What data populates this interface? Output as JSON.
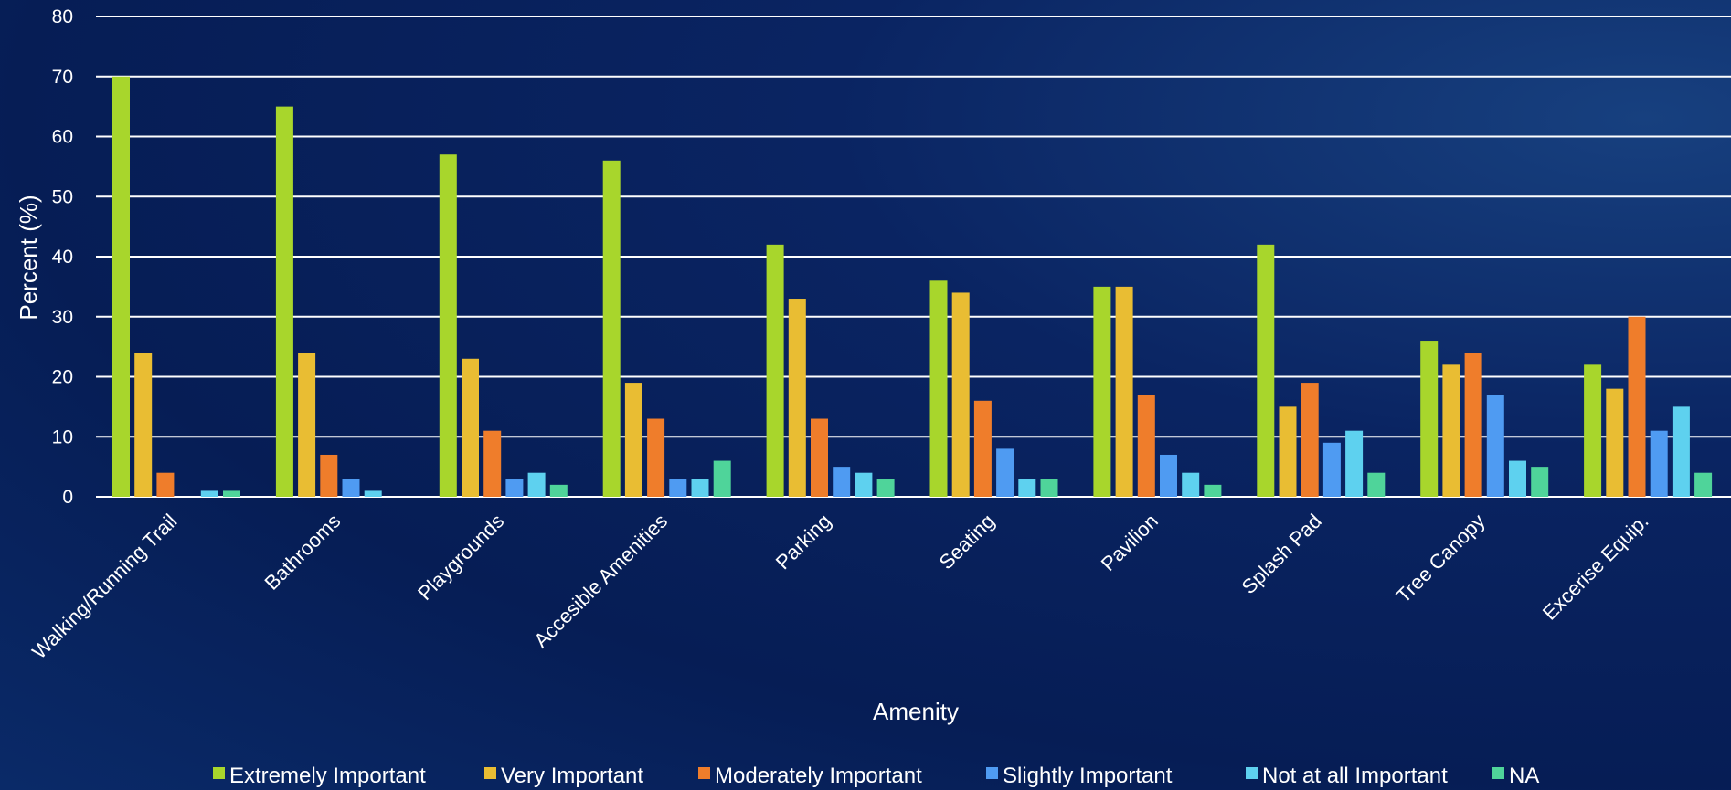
{
  "chart_data": {
    "type": "bar",
    "title": "",
    "xlabel": "Amenity",
    "ylabel": "Percent (%)",
    "ylim": [
      0,
      80
    ],
    "yticks": [
      0,
      10,
      20,
      30,
      40,
      50,
      60,
      70,
      80
    ],
    "grid": true,
    "legend_position": "bottom",
    "categories": [
      "Walking/Running Trail",
      "Bathrooms",
      "Playgrounds",
      "Accesible Amenities",
      "Parking",
      "Seating",
      "Pavilion",
      "Splash Pad",
      "Tree Canopy",
      "Excerise Equip."
    ],
    "series": [
      {
        "name": "Extremely Important",
        "color": "#a8d62c",
        "values": [
          70,
          65,
          57,
          56,
          42,
          36,
          35,
          42,
          26,
          22
        ]
      },
      {
        "name": "Very Important",
        "color": "#e9bd33",
        "values": [
          24,
          24,
          23,
          19,
          33,
          34,
          35,
          15,
          22,
          18
        ]
      },
      {
        "name": "Moderately Important",
        "color": "#ef7d2b",
        "values": [
          4,
          7,
          11,
          13,
          13,
          16,
          17,
          19,
          24,
          30
        ]
      },
      {
        "name": "Slightly Important",
        "color": "#4f9bf2",
        "values": [
          0,
          3,
          3,
          3,
          5,
          8,
          7,
          9,
          17,
          11
        ]
      },
      {
        "name": "Not at all Important",
        "color": "#5ed1ef",
        "values": [
          1,
          1,
          4,
          3,
          4,
          3,
          4,
          11,
          6,
          15
        ]
      },
      {
        "name": "NA",
        "color": "#4fd49a",
        "values": [
          1,
          0,
          2,
          6,
          3,
          3,
          2,
          4,
          5,
          4
        ]
      }
    ]
  }
}
